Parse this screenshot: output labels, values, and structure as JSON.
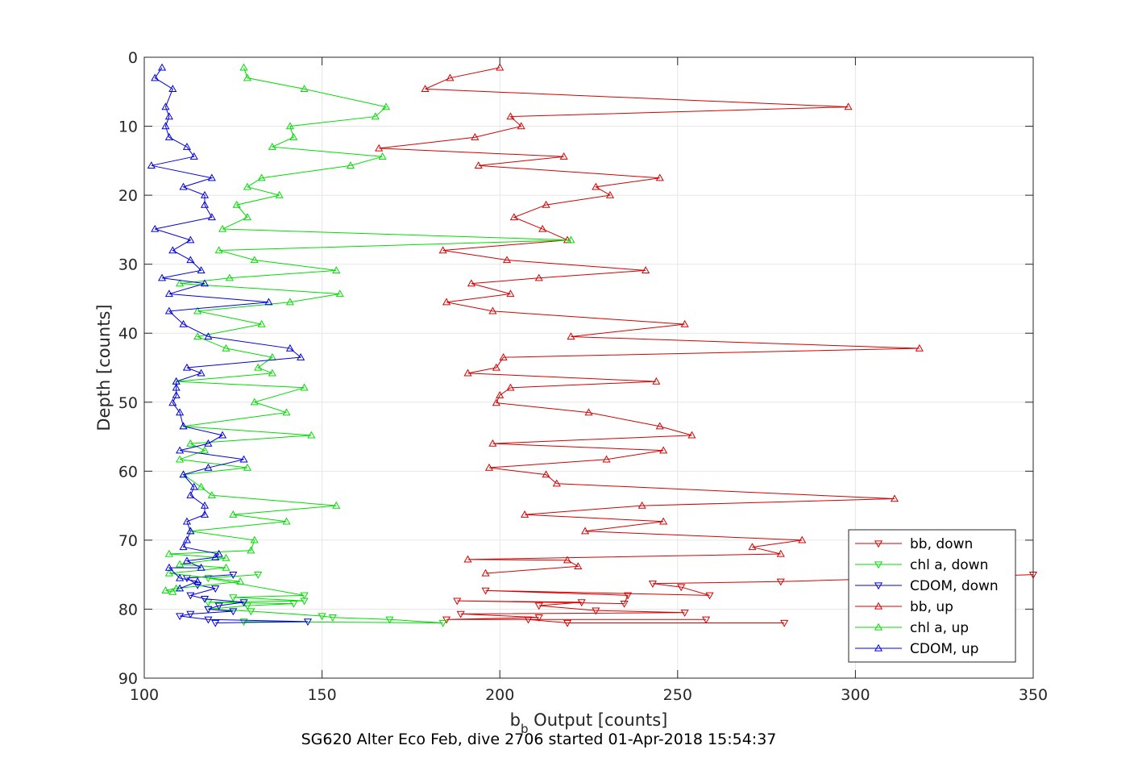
{
  "chart_data": {
    "type": "line",
    "title": "",
    "footer": "SG620 Alter Eco Feb, dive 2706 started 01-Apr-2018 15:54:37",
    "xlabel": "bb Output [counts]",
    "xlabel_main": "b",
    "xlabel_sub": "b",
    "xlabel_rest": " Output [counts]",
    "ylabel": "Depth [counts]",
    "xlim": [
      100,
      350
    ],
    "ylim": [
      0,
      90
    ],
    "y_reversed": true,
    "grid": true,
    "legend_position": "lower-right",
    "x_ticks": [
      100,
      150,
      200,
      250,
      300,
      350
    ],
    "y_ticks": [
      0,
      10,
      20,
      30,
      40,
      50,
      60,
      70,
      80,
      90
    ],
    "series": [
      {
        "name": "bb, down",
        "color": "#d40000",
        "marker": "triangle-down",
        "points": [
          [
            350,
            75
          ],
          [
            279,
            76
          ],
          [
            243,
            76.3
          ],
          [
            251,
            76.8
          ],
          [
            259,
            78
          ],
          [
            196,
            77.3
          ],
          [
            236,
            78
          ],
          [
            235,
            79.2
          ],
          [
            188,
            78.8
          ],
          [
            223,
            79
          ],
          [
            211,
            79.5
          ],
          [
            227,
            80.2
          ],
          [
            252,
            80.5
          ],
          [
            189,
            80.7
          ],
          [
            211,
            81.2
          ],
          [
            185,
            81.5
          ],
          [
            258,
            81.5
          ],
          [
            208,
            81.5
          ],
          [
            219,
            82
          ],
          [
            280,
            82
          ]
        ]
      },
      {
        "name": "chl a, down",
        "color": "#00dd00",
        "marker": "triangle-down",
        "points": [
          [
            132,
            75
          ],
          [
            118,
            75.5
          ],
          [
            145,
            78
          ],
          [
            125,
            78.3
          ],
          [
            145,
            78.8
          ],
          [
            118,
            79
          ],
          [
            142,
            79.2
          ],
          [
            129,
            79.5
          ],
          [
            118,
            80
          ],
          [
            130,
            80.3
          ],
          [
            150,
            81
          ],
          [
            153,
            81.2
          ],
          [
            169,
            81.5
          ],
          [
            184,
            82
          ],
          [
            128,
            81.8
          ]
        ]
      },
      {
        "name": "CDOM, down",
        "color": "#0000dd",
        "marker": "triangle-down",
        "points": [
          [
            125,
            75
          ],
          [
            112,
            75.5
          ],
          [
            115,
            76.5
          ],
          [
            120,
            77
          ],
          [
            113,
            78
          ],
          [
            117,
            78.5
          ],
          [
            128,
            79
          ],
          [
            121,
            79.5
          ],
          [
            118,
            80
          ],
          [
            125,
            80.3
          ],
          [
            113,
            80.7
          ],
          [
            110,
            81
          ],
          [
            118,
            81.5
          ],
          [
            146,
            81.8
          ],
          [
            120,
            82
          ]
        ]
      },
      {
        "name": "bb, up",
        "color": "#d40000",
        "marker": "triangle-up",
        "points": [
          [
            200,
            1.5
          ],
          [
            186,
            3
          ],
          [
            179,
            4.6
          ],
          [
            298,
            7.2
          ],
          [
            203,
            8.6
          ],
          [
            206,
            10
          ],
          [
            193,
            11.6
          ],
          [
            166,
            13.2
          ],
          [
            218,
            14.4
          ],
          [
            194,
            15.7
          ],
          [
            245,
            17.5
          ],
          [
            227,
            18.8
          ],
          [
            231,
            20
          ],
          [
            213,
            21.4
          ],
          [
            204,
            23.2
          ],
          [
            212,
            24.9
          ],
          [
            219,
            26.5
          ],
          [
            184,
            28
          ],
          [
            202,
            29.4
          ],
          [
            241,
            30.9
          ],
          [
            211,
            32
          ],
          [
            192,
            32.8
          ],
          [
            203,
            34.3
          ],
          [
            185,
            35.5
          ],
          [
            198,
            36.8
          ],
          [
            252,
            38.7
          ],
          [
            220,
            40.5
          ],
          [
            318,
            42.2
          ],
          [
            201,
            43.5
          ],
          [
            199,
            45
          ],
          [
            191,
            45.8
          ],
          [
            244,
            47
          ],
          [
            203,
            47.9
          ],
          [
            200,
            49
          ],
          [
            199,
            50.1
          ],
          [
            225,
            51.5
          ],
          [
            245,
            53.5
          ],
          [
            254,
            54.8
          ],
          [
            198,
            56
          ],
          [
            246,
            57
          ],
          [
            230,
            58.3
          ],
          [
            197,
            59.5
          ],
          [
            213,
            60.5
          ],
          [
            216,
            61.8
          ],
          [
            311,
            64
          ],
          [
            240,
            65
          ],
          [
            207,
            66.3
          ],
          [
            246,
            67.3
          ],
          [
            224,
            68.7
          ],
          [
            285,
            70
          ],
          [
            271,
            71
          ],
          [
            279,
            72
          ],
          [
            191,
            72.8
          ],
          [
            219,
            72.9
          ],
          [
            222,
            73.8
          ],
          [
            196,
            74.8
          ]
        ]
      },
      {
        "name": "chl a, up",
        "color": "#00dd00",
        "marker": "triangle-up",
        "points": [
          [
            128,
            1.5
          ],
          [
            129,
            3
          ],
          [
            145,
            4.6
          ],
          [
            168,
            7.2
          ],
          [
            165,
            8.6
          ],
          [
            141,
            10
          ],
          [
            142,
            11.6
          ],
          [
            136,
            13
          ],
          [
            167,
            14.4
          ],
          [
            158,
            15.7
          ],
          [
            133,
            17.5
          ],
          [
            129,
            18.8
          ],
          [
            138,
            20
          ],
          [
            126,
            21.4
          ],
          [
            129,
            23.2
          ],
          [
            122,
            24.9
          ],
          [
            220,
            26.5
          ],
          [
            121,
            28
          ],
          [
            131,
            29.4
          ],
          [
            154,
            30.9
          ],
          [
            124,
            32
          ],
          [
            110,
            32.8
          ],
          [
            155,
            34.3
          ],
          [
            141,
            35.5
          ],
          [
            115,
            36.8
          ],
          [
            133,
            38.7
          ],
          [
            115,
            40.5
          ],
          [
            123,
            42.2
          ],
          [
            136,
            43.5
          ],
          [
            132,
            45
          ],
          [
            136,
            45.8
          ],
          [
            109,
            47
          ],
          [
            145,
            47.9
          ],
          [
            131,
            50
          ],
          [
            140,
            51.5
          ],
          [
            111,
            53.5
          ],
          [
            147,
            54.8
          ],
          [
            113,
            56
          ],
          [
            117,
            57
          ],
          [
            110,
            58.3
          ],
          [
            129,
            59.5
          ],
          [
            111,
            60.5
          ],
          [
            116,
            62.3
          ],
          [
            119,
            63.5
          ],
          [
            154,
            65
          ],
          [
            125,
            66.3
          ],
          [
            140,
            67.3
          ],
          [
            113,
            68.7
          ],
          [
            131,
            70
          ],
          [
            130,
            71.5
          ],
          [
            107,
            72
          ],
          [
            123,
            72.6
          ],
          [
            110,
            73.5
          ],
          [
            123,
            74
          ],
          [
            107,
            74.8
          ],
          [
            127,
            76
          ],
          [
            109,
            77
          ],
          [
            106,
            77.3
          ],
          [
            108,
            77.5
          ]
        ]
      },
      {
        "name": "CDOM, up",
        "color": "#0000dd",
        "marker": "triangle-up",
        "points": [
          [
            105,
            1.5
          ],
          [
            103,
            3
          ],
          [
            108,
            4.6
          ],
          [
            106,
            7.2
          ],
          [
            107,
            8.6
          ],
          [
            106,
            10
          ],
          [
            107,
            11.6
          ],
          [
            112,
            13
          ],
          [
            114,
            14.4
          ],
          [
            102,
            15.7
          ],
          [
            119,
            17.5
          ],
          [
            111,
            18.8
          ],
          [
            117,
            20
          ],
          [
            117,
            21.4
          ],
          [
            119,
            23.2
          ],
          [
            103,
            24.9
          ],
          [
            113,
            26.5
          ],
          [
            108,
            28
          ],
          [
            113,
            29.4
          ],
          [
            116,
            30.9
          ],
          [
            105,
            32
          ],
          [
            117,
            32.8
          ],
          [
            107,
            34.3
          ],
          [
            135,
            35.5
          ],
          [
            107,
            36.8
          ],
          [
            111,
            38.7
          ],
          [
            118,
            40.5
          ],
          [
            141,
            42.2
          ],
          [
            144,
            43.5
          ],
          [
            112,
            45
          ],
          [
            116,
            45.8
          ],
          [
            109,
            47
          ],
          [
            109,
            47.9
          ],
          [
            109,
            49
          ],
          [
            108,
            50.1
          ],
          [
            110,
            51.5
          ],
          [
            111,
            53.5
          ],
          [
            122,
            54.8
          ],
          [
            118,
            56
          ],
          [
            110,
            57
          ],
          [
            128,
            58.3
          ],
          [
            118,
            59.5
          ],
          [
            111,
            60.5
          ],
          [
            114,
            62.3
          ],
          [
            113,
            63.5
          ],
          [
            117,
            65
          ],
          [
            117,
            66.3
          ],
          [
            112,
            67.3
          ],
          [
            113,
            68.7
          ],
          [
            112,
            70
          ],
          [
            111,
            71
          ],
          [
            121,
            72
          ],
          [
            120,
            72.5
          ],
          [
            112,
            73
          ],
          [
            116,
            74
          ],
          [
            107,
            74
          ],
          [
            110,
            75.5
          ],
          [
            115,
            76
          ],
          [
            110,
            77
          ]
        ]
      }
    ]
  }
}
